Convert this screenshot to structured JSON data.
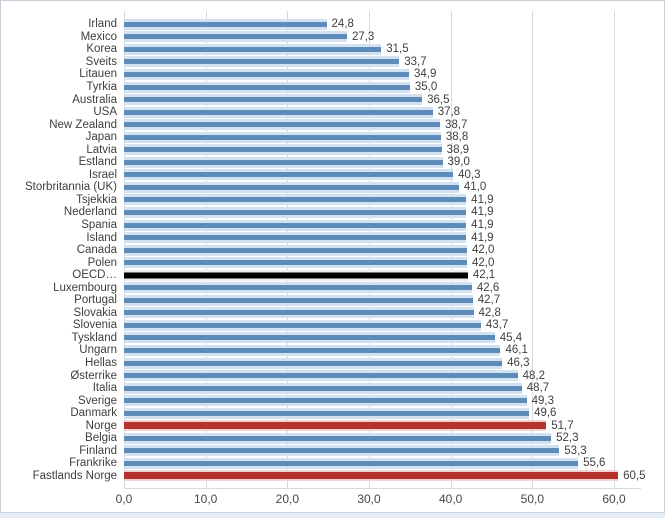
{
  "chart_data": {
    "type": "bar",
    "orientation": "horizontal",
    "title": "",
    "xlabel": "",
    "ylabel": "",
    "xlim": [
      0,
      60
    ],
    "grid": true,
    "x_ticks": [
      "0,0",
      "10,0",
      "20,0",
      "30,0",
      "40,0",
      "50,0",
      "60,0"
    ],
    "categories": [
      "Irland",
      "Mexico",
      "Korea",
      "Sveits",
      "Litauen",
      "Tyrkia",
      "Australia",
      "USA",
      "New Zealand",
      "Japan",
      "Latvia",
      "Estland",
      "Israel",
      "Storbritannia (UK)",
      "Tsjekkia",
      "Nederland",
      "Spania",
      "Island",
      "Canada",
      "Polen",
      "OECD…",
      "Luxembourg",
      "Portugal",
      "Slovakia",
      "Slovenia",
      "Tyskland",
      "Ungarn",
      "Hellas",
      "Østerrike",
      "Italia",
      "Sverige",
      "Danmark",
      "Norge",
      "Belgia",
      "Finland",
      "Frankrike",
      "Fastlands Norge"
    ],
    "values": [
      24.8,
      27.3,
      31.5,
      33.7,
      34.9,
      35.0,
      36.5,
      37.8,
      38.7,
      38.8,
      38.9,
      39.0,
      40.3,
      41.0,
      41.9,
      41.9,
      41.9,
      41.9,
      42.0,
      42.0,
      42.1,
      42.6,
      42.7,
      42.8,
      43.7,
      45.4,
      46.1,
      46.3,
      48.2,
      48.7,
      49.3,
      49.6,
      51.7,
      52.3,
      53.3,
      55.6,
      60.5
    ],
    "value_labels": [
      "24,8",
      "27,3",
      "31,5",
      "33,7",
      "34,9",
      "35,0",
      "36,5",
      "37,8",
      "38,7",
      "38,8",
      "38,9",
      "39,0",
      "40,3",
      "41,0",
      "41,9",
      "41,9",
      "41,9",
      "41,9",
      "42,0",
      "42,0",
      "42,1",
      "42,6",
      "42,7",
      "42,8",
      "43,7",
      "45,4",
      "46,1",
      "46,3",
      "48,2",
      "48,7",
      "49,3",
      "49,6",
      "51,7",
      "52,3",
      "53,3",
      "55,6",
      "60,5"
    ],
    "bar_styles": [
      "blue",
      "blue",
      "blue",
      "blue",
      "blue",
      "blue",
      "blue",
      "blue",
      "blue",
      "blue",
      "blue",
      "blue",
      "blue",
      "blue",
      "blue",
      "blue",
      "blue",
      "blue",
      "blue",
      "blue",
      "black",
      "blue",
      "blue",
      "blue",
      "blue",
      "blue",
      "blue",
      "blue",
      "blue",
      "blue",
      "blue",
      "blue",
      "red",
      "blue",
      "blue",
      "blue",
      "red"
    ],
    "highlights": {
      "black_bar": "OECD…",
      "red_bars": [
        "Norge",
        "Fastlands Norge"
      ]
    },
    "legend": "none"
  },
  "colors": {
    "bar_blue_core": "#5d8cb8",
    "bar_blue_halo": "#d2e2f0",
    "bar_red_core": "#b5332c",
    "bar_red_halo": "#f1d4d1",
    "bar_black_core": "#000000",
    "bar_black_halo": "#ededed",
    "gridline": "#d9d9d9",
    "text": "#3f3f3f"
  }
}
